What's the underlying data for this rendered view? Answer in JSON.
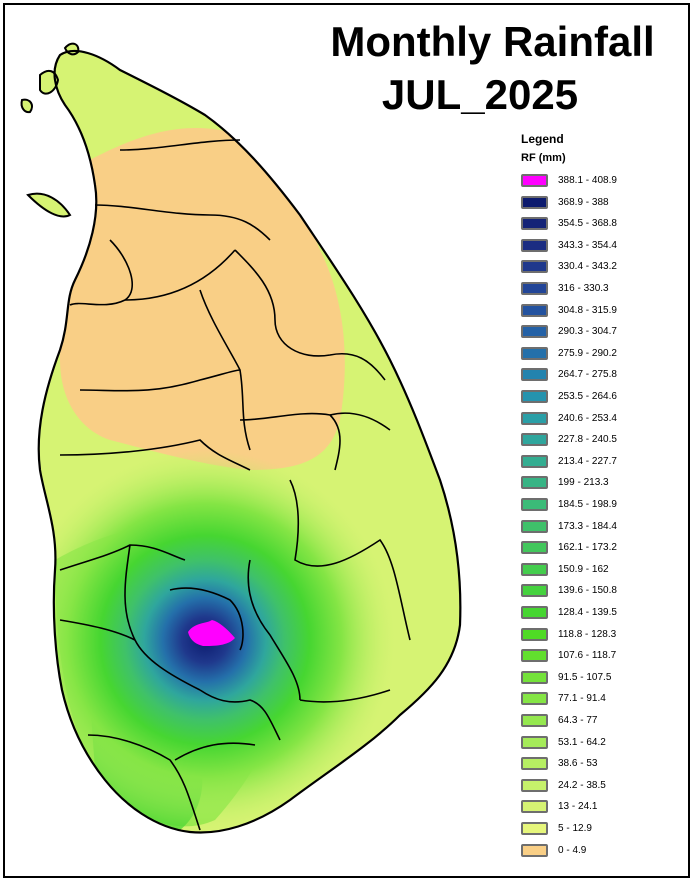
{
  "title": {
    "line1": "Monthly Rainfall",
    "line2": "JUL_2025"
  },
  "legend": {
    "title": "Legend",
    "subtitle": "RF (mm)",
    "items": [
      {
        "label": "388.1 - 408.9",
        "color": "#ff00ff"
      },
      {
        "label": "368.9 - 388",
        "color": "#0c1a6e"
      },
      {
        "label": "354.5 - 368.8",
        "color": "#142377"
      },
      {
        "label": "343.3 - 354.4",
        "color": "#1b2d82"
      },
      {
        "label": "330.4 - 343.2",
        "color": "#1f388c"
      },
      {
        "label": "316 - 330.3",
        "color": "#224597"
      },
      {
        "label": "304.8 - 315.9",
        "color": "#23529f"
      },
      {
        "label": "290.3 - 304.7",
        "color": "#2461a6"
      },
      {
        "label": "275.9 - 290.2",
        "color": "#2470aa"
      },
      {
        "label": "264.7 - 275.8",
        "color": "#2383ae"
      },
      {
        "label": "253.5 - 264.6",
        "color": "#2593ae"
      },
      {
        "label": "240.6 - 253.4",
        "color": "#2a9fa7"
      },
      {
        "label": "227.8 - 240.5",
        "color": "#2fa69d"
      },
      {
        "label": "213.4 - 227.7",
        "color": "#33ad91"
      },
      {
        "label": "199 - 213.3",
        "color": "#37b485"
      },
      {
        "label": "184.5 - 198.9",
        "color": "#3bbb78"
      },
      {
        "label": "173.3 - 184.4",
        "color": "#3fc16a"
      },
      {
        "label": "162.1 - 173.2",
        "color": "#42c75c"
      },
      {
        "label": "150.9 - 162",
        "color": "#44cd4d"
      },
      {
        "label": "139.6 - 150.8",
        "color": "#45d23e"
      },
      {
        "label": "128.4 - 139.5",
        "color": "#46d631"
      },
      {
        "label": "118.8 - 128.3",
        "color": "#4fdb25"
      },
      {
        "label": "107.6 - 118.7",
        "color": "#62df2e"
      },
      {
        "label": "91.5 - 107.5",
        "color": "#74e23a"
      },
      {
        "label": "77.1 - 91.4",
        "color": "#85e545"
      },
      {
        "label": "64.3 - 77",
        "color": "#95e84f"
      },
      {
        "label": "53.1 - 64.2",
        "color": "#a5eb59"
      },
      {
        "label": "38.6 - 53",
        "color": "#b6ee62"
      },
      {
        "label": "24.2 - 38.5",
        "color": "#c6f16b"
      },
      {
        "label": "13 - 24.1",
        "color": "#d6f373"
      },
      {
        "label": "5 - 12.9",
        "color": "#e6f67c"
      },
      {
        "label": "0 - 4.9",
        "color": "#f9cf86"
      }
    ]
  }
}
